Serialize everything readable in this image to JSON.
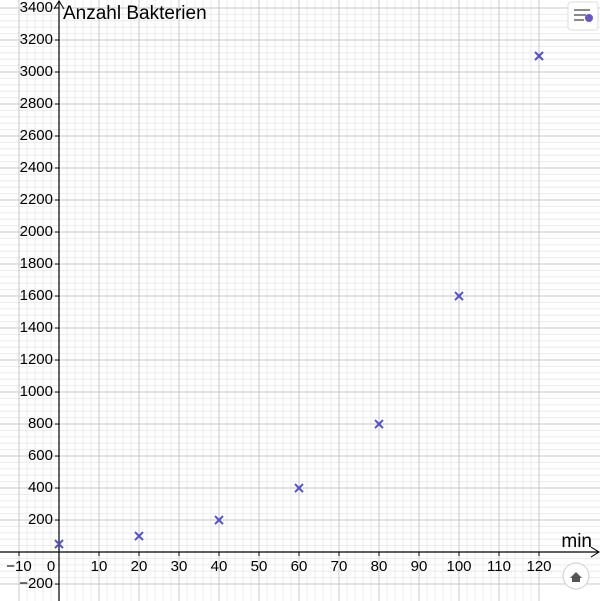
{
  "chart_data": {
    "type": "scatter",
    "x_label": "min",
    "y_label": "Anzahl Bakterien",
    "x": [
      0,
      20,
      40,
      60,
      80,
      100,
      120
    ],
    "values": [
      50,
      100,
      200,
      400,
      800,
      1600,
      3100
    ],
    "color": "#4f4fd0",
    "xlim": [
      -14.75,
      135.25
    ],
    "ylim": [
      -306,
      3450
    ],
    "xticks": [
      {
        "value": -10,
        "label": "−10"
      },
      0,
      10,
      20,
      30,
      40,
      50,
      60,
      70,
      80,
      90,
      100,
      110,
      120
    ],
    "yticks": [
      {
        "value": -200,
        "label": "−200"
      },
      200,
      400,
      600,
      800,
      1000,
      1200,
      1400,
      1600,
      1800,
      2000,
      2200,
      2400,
      2600,
      2800,
      3000,
      3200,
      3400
    ],
    "grid": true
  }
}
